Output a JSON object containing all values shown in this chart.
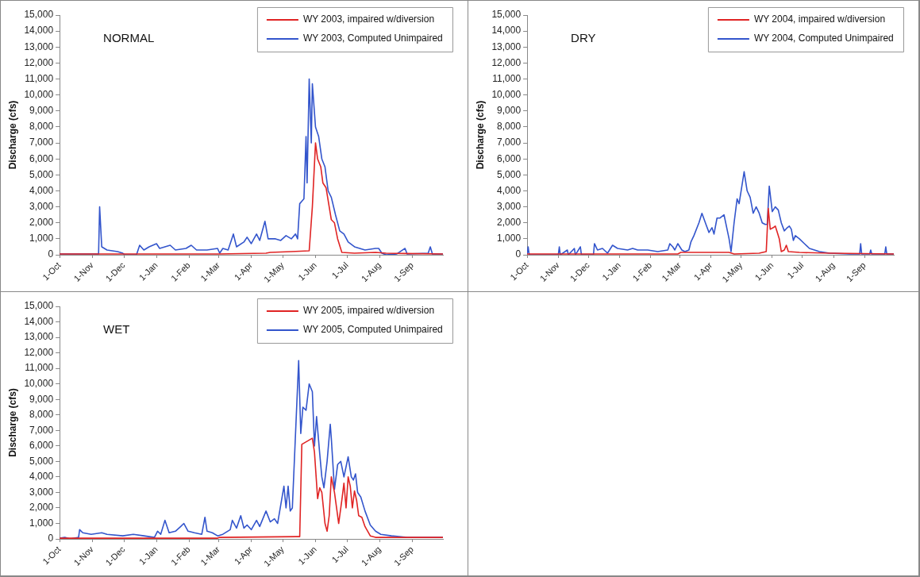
{
  "chart_data": [
    {
      "type": "line",
      "title": "NORMAL",
      "ylabel": "Discharge (cfs)",
      "legend": "top right",
      "marker": "none",
      "grid": false,
      "xlim": [
        "2002-10-01",
        "2003-09-30"
      ],
      "ylim": [
        0,
        15000
      ],
      "xticks": [
        {
          "value": "2002-10-01",
          "label": "1-Oct"
        },
        {
          "value": "2002-11-01",
          "label": "1-Nov"
        },
        {
          "value": "2002-12-01",
          "label": "1-Dec"
        },
        {
          "value": "2003-01-01",
          "label": "1-Jan"
        },
        {
          "value": "2003-02-01",
          "label": "1-Feb"
        },
        {
          "value": "2003-03-01",
          "label": "1-Mar"
        },
        {
          "value": "2003-04-01",
          "label": "1-Apr"
        },
        {
          "value": "2003-05-01",
          "label": "1-May"
        },
        {
          "value": "2003-06-01",
          "label": "1-Jun"
        },
        {
          "value": "2003-07-01",
          "label": "1-Jul"
        },
        {
          "value": "2003-08-01",
          "label": "1-Aug"
        },
        {
          "value": "2003-09-01",
          "label": "1-Sep"
        }
      ],
      "yticks": [
        {
          "value": 0,
          "label": "0"
        },
        {
          "value": 1000,
          "label": "1,000"
        },
        {
          "value": 2000,
          "label": "2,000"
        },
        {
          "value": 3000,
          "label": "3,000"
        },
        {
          "value": 4000,
          "label": "4,000"
        },
        {
          "value": 5000,
          "label": "5,000"
        },
        {
          "value": 6000,
          "label": "6,000"
        },
        {
          "value": 7000,
          "label": "7,000"
        },
        {
          "value": 8000,
          "label": "8,000"
        },
        {
          "value": 9000,
          "label": "9,000"
        },
        {
          "value": 10000,
          "label": "10,000"
        },
        {
          "value": 11000,
          "label": "11,000"
        },
        {
          "value": 12000,
          "label": "12,000"
        },
        {
          "value": 13000,
          "label": "13,000"
        },
        {
          "value": 14000,
          "label": "14,000"
        },
        {
          "value": 15000,
          "label": "15,000"
        }
      ],
      "series": [
        {
          "name": "WY 2003, impaired w/diversion",
          "color": "#e02424",
          "x": [
            "2002-10-01",
            "2003-02-28",
            "2003-04-15",
            "2003-04-19",
            "2003-05-09",
            "2003-05-26",
            "2003-05-29",
            "2003-06-01",
            "2003-06-03",
            "2003-06-06",
            "2003-06-08",
            "2003-06-11",
            "2003-06-14",
            "2003-06-16",
            "2003-06-19",
            "2003-06-22",
            "2003-06-26",
            "2003-07-08",
            "2003-07-28",
            "2003-08-07",
            "2003-09-30"
          ],
          "values": [
            50,
            50,
            100,
            150,
            200,
            250,
            3000,
            7000,
            6000,
            5500,
            4500,
            4200,
            3000,
            2200,
            2000,
            1000,
            150,
            100,
            150,
            100,
            50
          ]
        },
        {
          "name": "WY 2003, Computed Unimpaired",
          "color": "#3355cc",
          "x": [
            "2002-10-01",
            "2002-11-07",
            "2002-11-08",
            "2002-11-10",
            "2002-11-15",
            "2002-11-25",
            "2002-11-30",
            "2002-12-02",
            "2002-12-13",
            "2002-12-16",
            "2002-12-20",
            "2002-12-25",
            "2003-01-01",
            "2003-01-04",
            "2003-01-09",
            "2003-01-14",
            "2003-01-19",
            "2003-01-29",
            "2003-02-03",
            "2003-02-08",
            "2003-02-18",
            "2003-02-28",
            "2003-03-02",
            "2003-03-05",
            "2003-03-10",
            "2003-03-15",
            "2003-03-18",
            "2003-03-25",
            "2003-03-28",
            "2003-04-01",
            "2003-04-06",
            "2003-04-09",
            "2003-04-14",
            "2003-04-17",
            "2003-04-24",
            "2003-04-29",
            "2003-05-04",
            "2003-05-09",
            "2003-05-13",
            "2003-05-15",
            "2003-05-17",
            "2003-05-21",
            "2003-05-23",
            "2003-05-24",
            "2003-05-26",
            "2003-05-28",
            "2003-05-29",
            "2003-06-01",
            "2003-06-04",
            "2003-06-07",
            "2003-06-10",
            "2003-06-13",
            "2003-06-16",
            "2003-06-20",
            "2003-06-24",
            "2003-06-28",
            "2003-07-02",
            "2003-07-08",
            "2003-07-18",
            "2003-07-28",
            "2003-07-31",
            "2003-08-03",
            "2003-08-07",
            "2003-08-17",
            "2003-08-25",
            "2003-08-27",
            "2003-09-16",
            "2003-09-18",
            "2003-09-20",
            "2003-09-30"
          ],
          "values": [
            50,
            50,
            3000,
            500,
            300,
            200,
            100,
            0,
            0,
            600,
            300,
            500,
            700,
            400,
            500,
            600,
            300,
            400,
            600,
            300,
            300,
            400,
            100,
            400,
            300,
            1300,
            500,
            800,
            1100,
            700,
            1300,
            900,
            2100,
            1000,
            1000,
            900,
            1200,
            1000,
            1300,
            1000,
            3200,
            3500,
            7400,
            4500,
            11000,
            7000,
            10700,
            8000,
            7400,
            6000,
            5500,
            4000,
            3600,
            2500,
            1500,
            1300,
            800,
            500,
            300,
            400,
            400,
            100,
            0,
            50,
            400,
            50,
            100,
            500,
            50,
            50
          ]
        }
      ]
    },
    {
      "type": "line",
      "title": "DRY",
      "ylabel": "Discharge (cfs)",
      "legend": "top right",
      "marker": "none",
      "grid": false,
      "xlim": [
        "2003-10-01",
        "2004-09-30"
      ],
      "ylim": [
        0,
        15000
      ],
      "xticks": [
        {
          "value": "2003-10-01",
          "label": "1-Oct"
        },
        {
          "value": "2003-11-01",
          "label": "1-Nov"
        },
        {
          "value": "2003-12-01",
          "label": "1-Dec"
        },
        {
          "value": "2004-01-01",
          "label": "1-Jan"
        },
        {
          "value": "2004-02-01",
          "label": "1-Feb"
        },
        {
          "value": "2004-03-01",
          "label": "1-Mar"
        },
        {
          "value": "2004-04-01",
          "label": "1-Apr"
        },
        {
          "value": "2004-05-01",
          "label": "1-May"
        },
        {
          "value": "2004-06-01",
          "label": "1-Jun"
        },
        {
          "value": "2004-07-01",
          "label": "1-Jul"
        },
        {
          "value": "2004-08-01",
          "label": "1-Aug"
        },
        {
          "value": "2004-09-01",
          "label": "1-Sep"
        }
      ],
      "yticks": [
        {
          "value": 0,
          "label": "0"
        },
        {
          "value": 1000,
          "label": "1,000"
        },
        {
          "value": 2000,
          "label": "2,000"
        },
        {
          "value": 3000,
          "label": "3,000"
        },
        {
          "value": 4000,
          "label": "4,000"
        },
        {
          "value": 5000,
          "label": "5,000"
        },
        {
          "value": 6000,
          "label": "6,000"
        },
        {
          "value": 7000,
          "label": "7,000"
        },
        {
          "value": 8000,
          "label": "8,000"
        },
        {
          "value": 9000,
          "label": "9,000"
        },
        {
          "value": 10000,
          "label": "10,000"
        },
        {
          "value": 11000,
          "label": "11,000"
        },
        {
          "value": 12000,
          "label": "12,000"
        },
        {
          "value": 13000,
          "label": "13,000"
        },
        {
          "value": 14000,
          "label": "14,000"
        },
        {
          "value": 15000,
          "label": "15,000"
        }
      ],
      "series": [
        {
          "name": "WY 2004, impaired w/diversion",
          "color": "#e02424",
          "x": [
            "2003-10-01",
            "2004-02-28",
            "2004-03-02",
            "2004-04-19",
            "2004-04-24",
            "2004-05-19",
            "2004-05-26",
            "2004-05-28",
            "2004-05-30",
            "2004-06-02",
            "2004-06-04",
            "2004-06-06",
            "2004-06-08",
            "2004-06-10",
            "2004-06-13",
            "2004-06-15",
            "2004-06-17",
            "2004-06-28",
            "2004-07-28",
            "2004-09-30"
          ],
          "values": [
            50,
            50,
            150,
            150,
            50,
            100,
            200,
            2900,
            1600,
            1700,
            1800,
            1400,
            1000,
            200,
            300,
            600,
            200,
            150,
            100,
            50
          ]
        },
        {
          "name": "WY 2004, Computed Unimpaired",
          "color": "#3355cc",
          "x": [
            "2003-10-01",
            "2003-10-02",
            "2003-10-03",
            "2003-11-01",
            "2003-11-02",
            "2003-11-03",
            "2003-11-10",
            "2003-11-11",
            "2003-11-17",
            "2003-11-18",
            "2003-11-23",
            "2003-11-24",
            "2003-12-06",
            "2003-12-07",
            "2003-12-10",
            "2003-12-15",
            "2003-12-20",
            "2003-12-25",
            "2003-12-30",
            "2004-01-09",
            "2004-01-14",
            "2004-01-19",
            "2004-01-29",
            "2004-02-08",
            "2004-02-18",
            "2004-02-20",
            "2004-02-23",
            "2004-02-25",
            "2004-02-28",
            "2004-03-03",
            "2004-03-06",
            "2004-03-10",
            "2004-03-12",
            "2004-03-15",
            "2004-03-20",
            "2004-03-23",
            "2004-03-27",
            "2004-03-30",
            "2004-04-02",
            "2004-04-04",
            "2004-04-07",
            "2004-04-10",
            "2004-04-14",
            "2004-04-17",
            "2004-04-19",
            "2004-04-21",
            "2004-04-24",
            "2004-04-27",
            "2004-04-29",
            "2004-05-04",
            "2004-05-07",
            "2004-05-10",
            "2004-05-13",
            "2004-05-16",
            "2004-05-19",
            "2004-05-22",
            "2004-05-25",
            "2004-05-27",
            "2004-05-29",
            "2004-06-01",
            "2004-06-04",
            "2004-06-07",
            "2004-06-10",
            "2004-06-13",
            "2004-06-16",
            "2004-06-18",
            "2004-06-20",
            "2004-06-22",
            "2004-06-24",
            "2004-06-28",
            "2004-07-03",
            "2004-07-08",
            "2004-07-18",
            "2004-07-28",
            "2004-08-17",
            "2004-08-27",
            "2004-08-28",
            "2004-08-29",
            "2004-09-06",
            "2004-09-07",
            "2004-09-08",
            "2004-09-21",
            "2004-09-22",
            "2004-09-23",
            "2004-09-30"
          ],
          "values": [
            50,
            500,
            0,
            0,
            500,
            0,
            300,
            0,
            400,
            0,
            500,
            0,
            0,
            700,
            300,
            400,
            100,
            600,
            400,
            300,
            400,
            300,
            300,
            200,
            300,
            700,
            500,
            300,
            700,
            300,
            200,
            300,
            800,
            1200,
            2000,
            2600,
            1900,
            1400,
            1700,
            1300,
            2300,
            2300,
            2500,
            1600,
            1000,
            200,
            2000,
            3500,
            3200,
            5200,
            4000,
            3600,
            2600,
            3000,
            2600,
            2000,
            1900,
            1900,
            4300,
            2700,
            3000,
            2800,
            2000,
            1500,
            1700,
            1800,
            1600,
            900,
            1200,
            1000,
            700,
            400,
            200,
            100,
            50,
            50,
            700,
            50,
            50,
            300,
            50,
            50,
            500,
            50,
            50
          ]
        }
      ]
    },
    {
      "type": "line",
      "title": "WET",
      "ylabel": "Discharge (cfs)",
      "legend": "top right",
      "marker": "none",
      "grid": false,
      "xlim": [
        "2004-10-01",
        "2005-09-30"
      ],
      "ylim": [
        0,
        15000
      ],
      "xticks": [
        {
          "value": "2004-10-01",
          "label": "1-Oct"
        },
        {
          "value": "2004-11-01",
          "label": "1-Nov"
        },
        {
          "value": "2004-12-01",
          "label": "1-Dec"
        },
        {
          "value": "2005-01-01",
          "label": "1-Jan"
        },
        {
          "value": "2005-02-01",
          "label": "1-Feb"
        },
        {
          "value": "2005-03-01",
          "label": "1-Mar"
        },
        {
          "value": "2005-04-01",
          "label": "1-Apr"
        },
        {
          "value": "2005-05-01",
          "label": "1-May"
        },
        {
          "value": "2005-06-01",
          "label": "1-Jun"
        },
        {
          "value": "2005-07-01",
          "label": "1-Jul"
        },
        {
          "value": "2005-08-01",
          "label": "1-Aug"
        },
        {
          "value": "2005-09-01",
          "label": "1-Sep"
        }
      ],
      "yticks": [
        {
          "value": 0,
          "label": "0"
        },
        {
          "value": 1000,
          "label": "1,000"
        },
        {
          "value": 2000,
          "label": "2,000"
        },
        {
          "value": 3000,
          "label": "3,000"
        },
        {
          "value": 4000,
          "label": "4,000"
        },
        {
          "value": 5000,
          "label": "5,000"
        },
        {
          "value": 6000,
          "label": "6,000"
        },
        {
          "value": 7000,
          "label": "7,000"
        },
        {
          "value": 8000,
          "label": "8,000"
        },
        {
          "value": 9000,
          "label": "9,000"
        },
        {
          "value": 10000,
          "label": "10,000"
        },
        {
          "value": 11000,
          "label": "11,000"
        },
        {
          "value": 12000,
          "label": "12,000"
        },
        {
          "value": 13000,
          "label": "13,000"
        },
        {
          "value": 14000,
          "label": "14,000"
        },
        {
          "value": 15000,
          "label": "15,000"
        }
      ],
      "series": [
        {
          "name": "WY 2005, impaired w/diversion",
          "color": "#e02424",
          "x": [
            "2004-10-01",
            "2005-02-28",
            "2005-03-02",
            "2005-05-14",
            "2005-05-17",
            "2005-05-19",
            "2005-05-29",
            "2005-05-31",
            "2005-06-03",
            "2005-06-05",
            "2005-06-07",
            "2005-06-10",
            "2005-06-12",
            "2005-06-14",
            "2005-06-16",
            "2005-06-19",
            "2005-06-21",
            "2005-06-23",
            "2005-06-26",
            "2005-06-28",
            "2005-06-30",
            "2005-07-02",
            "2005-07-04",
            "2005-07-06",
            "2005-07-08",
            "2005-07-10",
            "2005-07-12",
            "2005-07-15",
            "2005-07-18",
            "2005-07-23",
            "2005-07-28",
            "2005-09-30"
          ],
          "values": [
            50,
            50,
            100,
            150,
            150,
            6100,
            6500,
            5600,
            2600,
            3300,
            3000,
            1000,
            500,
            1500,
            4000,
            3000,
            2000,
            1000,
            2500,
            3600,
            2000,
            4000,
            3400,
            2000,
            3100,
            2500,
            1500,
            1400,
            800,
            200,
            100,
            100
          ]
        },
        {
          "name": "WY 2005, Computed Unimpaired",
          "color": "#3355cc",
          "x": [
            "2004-10-01",
            "2004-10-06",
            "2004-10-11",
            "2004-10-19",
            "2004-10-20",
            "2004-10-23",
            "2004-10-31",
            "2004-11-10",
            "2004-11-15",
            "2004-11-30",
            "2004-12-10",
            "2004-12-20",
            "2004-12-30",
            "2005-01-02",
            "2005-01-05",
            "2005-01-09",
            "2005-01-13",
            "2005-01-19",
            "2005-01-24",
            "2005-01-27",
            "2005-01-31",
            "2005-02-06",
            "2005-02-13",
            "2005-02-16",
            "2005-02-18",
            "2005-02-23",
            "2005-02-28",
            "2005-03-05",
            "2005-03-12",
            "2005-03-14",
            "2005-03-18",
            "2005-03-22",
            "2005-03-25",
            "2005-03-28",
            "2005-04-01",
            "2005-04-06",
            "2005-04-09",
            "2005-04-15",
            "2005-04-19",
            "2005-04-23",
            "2005-04-26",
            "2005-04-29",
            "2005-05-02",
            "2005-05-04",
            "2005-05-06",
            "2005-05-08",
            "2005-05-10",
            "2005-05-16",
            "2005-05-18",
            "2005-05-20",
            "2005-05-23",
            "2005-05-26",
            "2005-05-29",
            "2005-05-31",
            "2005-06-02",
            "2005-06-05",
            "2005-06-07",
            "2005-06-09",
            "2005-06-12",
            "2005-06-15",
            "2005-06-16",
            "2005-06-19",
            "2005-06-22",
            "2005-06-25",
            "2005-06-28",
            "2005-07-02",
            "2005-07-05",
            "2005-07-07",
            "2005-07-09",
            "2005-07-11",
            "2005-07-14",
            "2005-07-18",
            "2005-07-23",
            "2005-07-28",
            "2005-08-02",
            "2005-08-12",
            "2005-08-27",
            "2005-09-30"
          ],
          "values": [
            50,
            100,
            0,
            100,
            600,
            400,
            300,
            400,
            300,
            200,
            300,
            200,
            100,
            500,
            300,
            1200,
            400,
            500,
            800,
            1000,
            500,
            400,
            300,
            1400,
            500,
            400,
            200,
            300,
            600,
            1200,
            700,
            1500,
            700,
            900,
            600,
            1200,
            800,
            1800,
            1100,
            1300,
            1000,
            2200,
            3400,
            2000,
            3400,
            1800,
            2000,
            11500,
            6800,
            8500,
            8300,
            10000,
            9500,
            6000,
            7900,
            5500,
            4000,
            3300,
            5000,
            7400,
            6500,
            3200,
            4800,
            5000,
            4000,
            5300,
            4000,
            3800,
            4200,
            3000,
            2700,
            1800,
            900,
            500,
            300,
            200,
            100,
            100
          ]
        }
      ]
    }
  ]
}
